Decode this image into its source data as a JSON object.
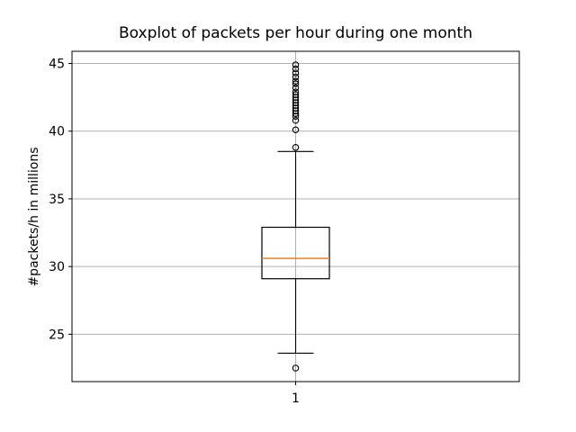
{
  "chart_data": {
    "type": "boxplot",
    "title": "Boxplot of packets per hour during one month",
    "xlabel": "",
    "ylabel": "#packets/h in millions",
    "categories": [
      "1"
    ],
    "yticks": [
      25,
      30,
      35,
      40,
      45
    ],
    "ylim": [
      21.5,
      45.9
    ],
    "grid": true,
    "legend": "none",
    "series": [
      {
        "name": "1",
        "q1": 29.1,
        "median": 30.6,
        "q3": 32.9,
        "whisker_low": 23.6,
        "whisker_high": 38.5,
        "outliers_low": [
          22.5
        ],
        "outliers_high": [
          38.8,
          40.1,
          40.8,
          41.1,
          41.3,
          41.5,
          41.7,
          41.9,
          42.1,
          42.3,
          42.5,
          42.7,
          42.9,
          43.2,
          43.5,
          43.7,
          44.0,
          44.3,
          44.6,
          44.9
        ]
      }
    ],
    "colors": {
      "median": "#ff7f0e",
      "grid": "#b0b0b0",
      "line": "#000000",
      "background": "#ffffff"
    }
  }
}
